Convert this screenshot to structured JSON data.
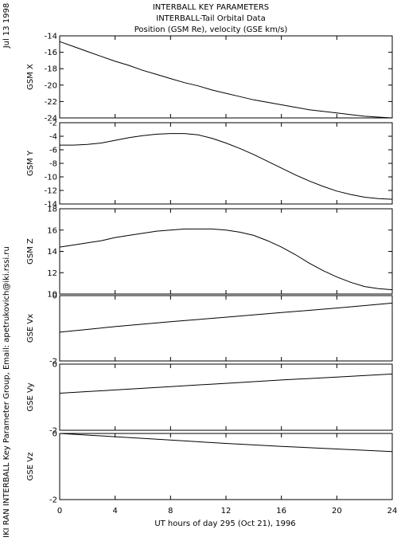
{
  "header": {
    "line1": "INTERBALL KEY PARAMETERS",
    "line2": "INTERBALL-Tail Orbital Data",
    "line3": "Position (GSM Re), velocity (GSE km/s)"
  },
  "side": {
    "date": "Jul 13 1998",
    "credit": "IKI RAN INTERBALL Key Parameter Group, Email: apetrukovich@iki.rssi.ru"
  },
  "chart_data": {
    "type": "line",
    "xlabel": "UT hours of day 295 (Oct 21), 1996",
    "xlim": [
      0,
      24
    ],
    "xticks": [
      "0",
      "4",
      "8",
      "12",
      "16",
      "20",
      "24"
    ],
    "panels": [
      {
        "ylabel": "GSM X",
        "ylim": [
          -24,
          -14
        ],
        "yticks": [
          "-14",
          "-16",
          "-18",
          "-20",
          "-22",
          "-24"
        ],
        "x": [
          0,
          1,
          2,
          3,
          4,
          5,
          6,
          7,
          8,
          9,
          10,
          11,
          12,
          13,
          14,
          15,
          16,
          17,
          18,
          19,
          20,
          21,
          22,
          23,
          24
        ],
        "values": [
          -14.7,
          -15.3,
          -15.9,
          -16.5,
          -17.1,
          -17.6,
          -18.2,
          -18.7,
          -19.2,
          -19.7,
          -20.1,
          -20.6,
          -21.0,
          -21.4,
          -21.8,
          -22.1,
          -22.4,
          -22.7,
          -23.0,
          -23.2,
          -23.4,
          -23.6,
          -23.8,
          -23.9,
          -24.0
        ]
      },
      {
        "ylabel": "GSM Y",
        "ylim": [
          -14,
          -2
        ],
        "yticks": [
          "-2",
          "-4",
          "-6",
          "-8",
          "-10",
          "-12",
          "-14"
        ],
        "x": [
          0,
          1,
          2,
          3,
          4,
          5,
          6,
          7,
          8,
          9,
          10,
          11,
          12,
          13,
          14,
          15,
          16,
          17,
          18,
          19,
          20,
          21,
          22,
          23,
          24
        ],
        "values": [
          -5.3,
          -5.3,
          -5.2,
          -5.0,
          -4.6,
          -4.2,
          -3.9,
          -3.7,
          -3.6,
          -3.6,
          -3.8,
          -4.3,
          -5.0,
          -5.8,
          -6.7,
          -7.7,
          -8.7,
          -9.7,
          -10.6,
          -11.4,
          -12.1,
          -12.6,
          -13.0,
          -13.2,
          -13.3
        ]
      },
      {
        "ylabel": "GSM Z",
        "ylim": [
          10,
          18
        ],
        "yticks": [
          "18",
          "16",
          "14",
          "12",
          "10"
        ],
        "x": [
          0,
          1,
          2,
          3,
          4,
          5,
          6,
          7,
          8,
          9,
          10,
          11,
          12,
          13,
          14,
          15,
          16,
          17,
          18,
          19,
          20,
          21,
          22,
          23,
          24
        ],
        "values": [
          14.4,
          14.6,
          14.8,
          15.0,
          15.3,
          15.5,
          15.7,
          15.9,
          16.0,
          16.1,
          16.1,
          16.1,
          16.0,
          15.8,
          15.5,
          15.0,
          14.4,
          13.7,
          12.9,
          12.2,
          11.6,
          11.1,
          10.7,
          10.5,
          10.4
        ]
      },
      {
        "ylabel": "GSE Vx",
        "ylim": [
          -2,
          0
        ],
        "yticks": [
          "0",
          "-2"
        ],
        "x": [
          0,
          4,
          8,
          12,
          16,
          20,
          24
        ],
        "values": [
          -1.12,
          -0.95,
          -0.8,
          -0.66,
          -0.52,
          -0.38,
          -0.23
        ]
      },
      {
        "ylabel": "GSE Vy",
        "ylim": [
          -2,
          0
        ],
        "yticks": [
          "0",
          "-2"
        ],
        "x": [
          0,
          4,
          8,
          12,
          16,
          20,
          24
        ],
        "values": [
          -0.88,
          -0.78,
          -0.68,
          -0.58,
          -0.48,
          -0.39,
          -0.3
        ]
      },
      {
        "ylabel": "GSE Vz",
        "ylim": [
          -2,
          0
        ],
        "yticks": [
          "0",
          "-2"
        ],
        "x": [
          0,
          4,
          8,
          12,
          16,
          20,
          24
        ],
        "values": [
          0.0,
          -0.1,
          -0.2,
          -0.3,
          -0.39,
          -0.47,
          -0.55
        ]
      }
    ]
  }
}
